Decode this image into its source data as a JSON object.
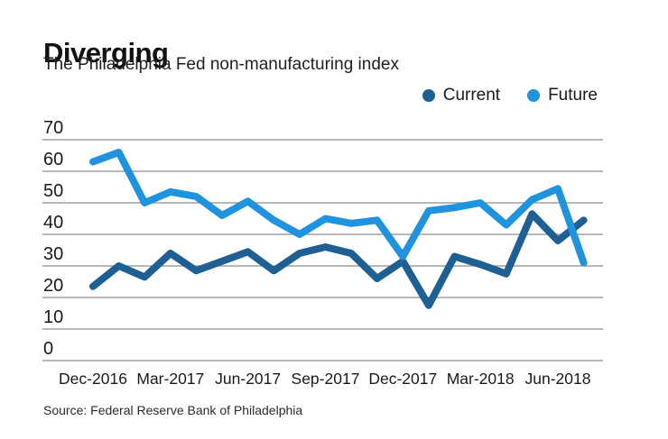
{
  "header": {
    "title": "Diverging",
    "subtitle": "The Philadelphia Fed non-manufacturing index"
  },
  "legend": {
    "items": [
      {
        "label": "Current"
      },
      {
        "label": "Future"
      }
    ]
  },
  "source": "Source: Federal Reserve Bank of Philadelphia",
  "colors": {
    "current": "#1E5F94",
    "future": "#2093DF",
    "grid": "#8C8C8C",
    "text": "#1A1A1A"
  },
  "chart_data": {
    "type": "line",
    "title": "Diverging",
    "subtitle": "The Philadelphia Fed non-manufacturing index",
    "categories": [
      "Dec-2016",
      "Jan-2017",
      "Feb-2017",
      "Mar-2017",
      "Apr-2017",
      "May-2017",
      "Jun-2017",
      "Jul-2017",
      "Aug-2017",
      "Sep-2017",
      "Oct-2017",
      "Nov-2017",
      "Dec-2017",
      "Jan-2018",
      "Feb-2018",
      "Mar-2018",
      "Apr-2018",
      "May-2018",
      "Jun-2018",
      "Jul-2018"
    ],
    "series": [
      {
        "name": "Current",
        "color_key": "current",
        "values": [
          23.5,
          30,
          26.5,
          34,
          28.5,
          31.5,
          34.5,
          28.5,
          34,
          36,
          34,
          26,
          31.5,
          17.5,
          33,
          30.5,
          27.5,
          46.5,
          38,
          44.5
        ]
      },
      {
        "name": "Future",
        "color_key": "future",
        "values": [
          63,
          66,
          50,
          53.5,
          52,
          46,
          50.5,
          44.5,
          40,
          45,
          43.5,
          44.5,
          33,
          47.5,
          48.5,
          50,
          43,
          51,
          54.5,
          31
        ]
      }
    ],
    "xlabel": "",
    "ylabel": "",
    "ylim": [
      0,
      70
    ],
    "ytick_step": 10,
    "yticks": [
      0,
      10,
      20,
      30,
      40,
      50,
      60,
      70
    ],
    "xtick_step": 3,
    "xticks_visible": [
      "Dec-2016",
      "Mar-2017",
      "Jun-2017",
      "Sep-2017",
      "Dec-2017",
      "Mar-2018",
      "Jun-2018"
    ],
    "grid": "horizontal",
    "legend_position": "top-right"
  }
}
